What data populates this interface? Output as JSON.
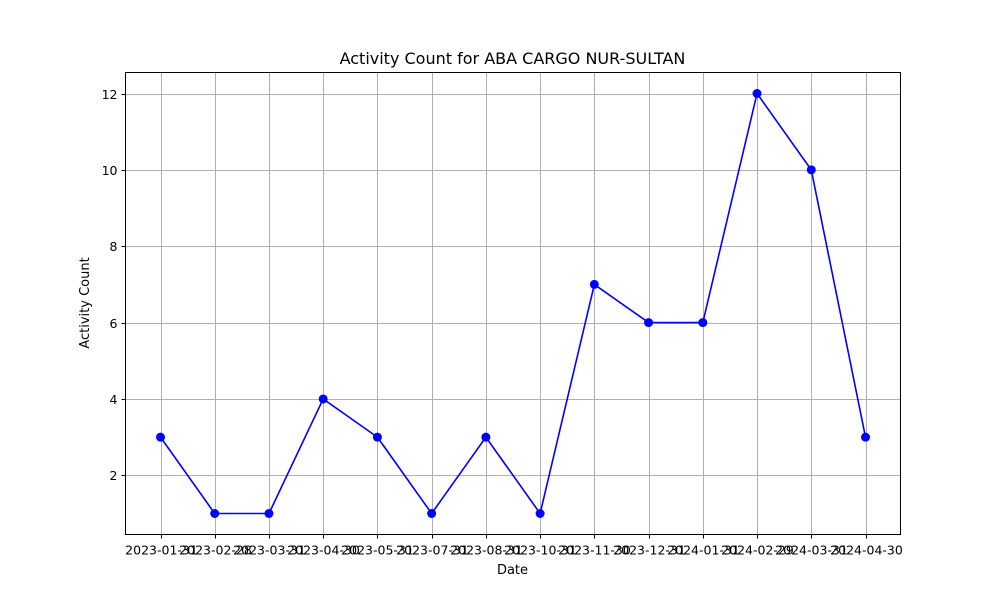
{
  "chart_data": {
    "type": "line",
    "title": "Activity Count for ABA CARGO NUR-SULTAN",
    "xlabel": "Date",
    "ylabel": "Activity Count",
    "x": [
      "2023-01-31",
      "2023-02-28",
      "2023-03-31",
      "2023-04-30",
      "2023-05-31",
      "2023-07-31",
      "2023-08-31",
      "2023-10-31",
      "2023-11-30",
      "2023-12-31",
      "2024-01-31",
      "2024-02-29",
      "2024-03-31",
      "2024-04-30"
    ],
    "series": [
      {
        "values": [
          3,
          1,
          1,
          4,
          3,
          1,
          3,
          1,
          7,
          6,
          6,
          12,
          10,
          3
        ],
        "color": "#0000ff"
      }
    ],
    "ylim": [
      0.45,
      12.55
    ],
    "yticks": [
      2,
      4,
      6,
      8,
      10,
      12
    ],
    "grid": true,
    "marker": "circle"
  }
}
